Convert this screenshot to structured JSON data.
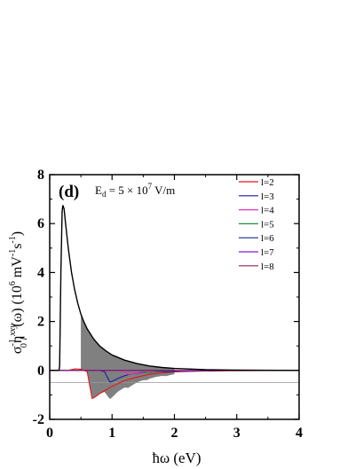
{
  "chart_data": {
    "type": "line",
    "panel_label": "(d)",
    "annotation": {
      "prefix": "E",
      "subscript": "d",
      "mid": " = 5 × 10",
      "superscript": "7",
      "suffix": " V/m"
    },
    "xlabel": "ħω (eV)",
    "ylabel": {
      "sigma": "σ",
      "sigma_sup": "-1",
      "sigma_sub": "0",
      "eta": "η",
      "eta_sup": "xxy",
      "eta_sub": "l",
      "tail": "(ω) (10",
      "exp": "6",
      "units_a": " mV",
      "units_a_sup": "-1",
      "units_b": "s",
      "units_b_sup": "-1",
      "close": ")"
    },
    "xlim": [
      0,
      4
    ],
    "ylim": [
      -2,
      8
    ],
    "x_ticks": [
      0,
      1,
      2,
      3,
      4
    ],
    "x_tick_labels": [
      "0",
      "1",
      "2",
      "3",
      "4"
    ],
    "y_ticks": [
      -2,
      0,
      2,
      4,
      6,
      8
    ],
    "y_tick_labels": [
      "-2",
      "0",
      "2",
      "4",
      "6",
      "8"
    ],
    "reference_line": -0.5,
    "shaded_region": {
      "x_from": 0.5,
      "x_to": 2.0,
      "color": "#808080"
    },
    "series": [
      {
        "name": "",
        "color": "#000000",
        "points": [
          [
            0.0,
            0.0
          ],
          [
            0.15,
            0.0
          ],
          [
            0.16,
            0.2
          ],
          [
            0.18,
            4.0
          ],
          [
            0.2,
            6.5
          ],
          [
            0.21,
            6.75
          ],
          [
            0.23,
            6.6
          ],
          [
            0.25,
            6.1
          ],
          [
            0.28,
            5.4
          ],
          [
            0.3,
            4.95
          ],
          [
            0.35,
            4.0
          ],
          [
            0.4,
            3.3
          ],
          [
            0.45,
            2.75
          ],
          [
            0.5,
            2.3
          ],
          [
            0.55,
            1.98
          ],
          [
            0.6,
            1.7
          ],
          [
            0.7,
            1.3
          ],
          [
            0.8,
            1.0
          ],
          [
            0.9,
            0.8
          ],
          [
            1.0,
            0.63
          ],
          [
            1.2,
            0.42
          ],
          [
            1.4,
            0.28
          ],
          [
            1.6,
            0.18
          ],
          [
            1.8,
            0.12
          ],
          [
            2.0,
            0.08
          ],
          [
            2.5,
            0.03
          ],
          [
            3.0,
            0.01
          ],
          [
            4.0,
            0.0
          ]
        ]
      },
      {
        "name": "l=2",
        "color": "#e8141c",
        "points": [
          [
            0.0,
            0.0
          ],
          [
            0.3,
            0.0
          ],
          [
            0.4,
            0.06
          ],
          [
            0.5,
            0.05
          ],
          [
            0.6,
            -0.05
          ],
          [
            0.64,
            -0.6
          ],
          [
            0.68,
            -1.15
          ],
          [
            0.72,
            -1.1
          ],
          [
            0.8,
            -0.95
          ],
          [
            0.9,
            -0.8
          ],
          [
            1.0,
            -0.65
          ],
          [
            1.2,
            -0.42
          ],
          [
            1.4,
            -0.27
          ],
          [
            1.6,
            -0.16
          ],
          [
            1.8,
            -0.1
          ],
          [
            2.0,
            -0.06
          ],
          [
            2.5,
            -0.02
          ],
          [
            3.0,
            -0.01
          ],
          [
            4.0,
            0.0
          ]
        ]
      },
      {
        "name": "l=3",
        "color": "#1a1aa6",
        "points": [
          [
            0.0,
            0.0
          ],
          [
            0.8,
            0.0
          ],
          [
            0.88,
            -0.05
          ],
          [
            0.94,
            -0.35
          ],
          [
            0.97,
            -0.48
          ],
          [
            1.0,
            -0.45
          ],
          [
            1.1,
            -0.32
          ],
          [
            1.2,
            -0.22
          ],
          [
            1.3,
            -0.15
          ],
          [
            1.5,
            -0.08
          ],
          [
            1.8,
            -0.04
          ],
          [
            2.2,
            -0.02
          ],
          [
            3.0,
            0.0
          ],
          [
            4.0,
            0.0
          ]
        ]
      },
      {
        "name": "l=4",
        "color": "#ee2ec4",
        "points": [
          [
            0.0,
            0.0
          ],
          [
            1.1,
            0.0
          ],
          [
            1.2,
            -0.06
          ],
          [
            1.26,
            -0.16
          ],
          [
            1.32,
            -0.14
          ],
          [
            1.45,
            -0.08
          ],
          [
            1.6,
            -0.04
          ],
          [
            2.0,
            -0.01
          ],
          [
            4.0,
            0.0
          ]
        ]
      },
      {
        "name": "l=5",
        "color": "#1e8c3a",
        "points": [
          [
            0.0,
            0.0
          ],
          [
            1.4,
            0.0
          ],
          [
            1.5,
            -0.04
          ],
          [
            1.56,
            -0.09
          ],
          [
            1.62,
            -0.07
          ],
          [
            1.8,
            -0.03
          ],
          [
            2.2,
            -0.01
          ],
          [
            4.0,
            0.0
          ]
        ]
      },
      {
        "name": "l=6",
        "color": "#142a8c",
        "points": [
          [
            0.0,
            0.0
          ],
          [
            1.7,
            0.0
          ],
          [
            1.8,
            -0.03
          ],
          [
            1.86,
            -0.06
          ],
          [
            1.95,
            -0.04
          ],
          [
            2.2,
            -0.01
          ],
          [
            4.0,
            0.0
          ]
        ]
      },
      {
        "name": "l=7",
        "color": "#7a1fd1",
        "points": [
          [
            0.0,
            0.0
          ],
          [
            2.0,
            0.0
          ],
          [
            2.1,
            -0.02
          ],
          [
            2.2,
            -0.04
          ],
          [
            2.4,
            -0.02
          ],
          [
            3.0,
            0.0
          ],
          [
            4.0,
            0.0
          ]
        ]
      },
      {
        "name": "l=8",
        "color": "#8a2060",
        "points": [
          [
            0.0,
            0.0
          ],
          [
            2.3,
            0.0
          ],
          [
            2.45,
            -0.02
          ],
          [
            2.6,
            -0.03
          ],
          [
            2.8,
            -0.01
          ],
          [
            4.0,
            0.0
          ]
        ]
      }
    ],
    "legend_position": "top-right",
    "grid": false
  }
}
